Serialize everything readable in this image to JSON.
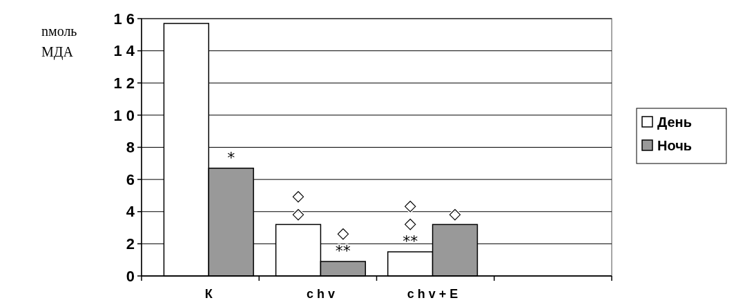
{
  "chart_data": {
    "type": "bar",
    "ylabel": "nмоль\nМДА",
    "categories": [
      "К",
      "c h v",
      "c h v + E",
      null
    ],
    "series": [
      {
        "name": "День",
        "color": "#ffffff",
        "values": [
          15.7,
          3.2,
          1.5,
          null
        ]
      },
      {
        "name": "Ночь",
        "color": "#999999",
        "values": [
          6.7,
          0.9,
          3.2,
          null
        ]
      }
    ],
    "ylim": [
      0,
      16
    ],
    "yticks": [
      0,
      2,
      4,
      6,
      8,
      {
        "value": 10,
        "label": "1 0"
      },
      {
        "value": 12,
        "label": "1 2"
      },
      {
        "value": 14,
        "label": "1 4"
      },
      {
        "value": 16,
        "label": "1 6"
      }
    ],
    "grid": "y",
    "legend": "right",
    "annotations": [
      {
        "text": "*",
        "x": "К",
        "y": 6.7
      },
      {
        "text": "◇\n◇",
        "x": "c h v",
        "y": 3.2
      },
      {
        "text": "◇\n**",
        "x": "c h v",
        "y": 0.9
      },
      {
        "text": "◇\n◇\n**",
        "x": "c h v + E",
        "y": 1.5
      },
      {
        "text": "◇",
        "x": "c h v + E",
        "y": 3.2
      }
    ]
  }
}
